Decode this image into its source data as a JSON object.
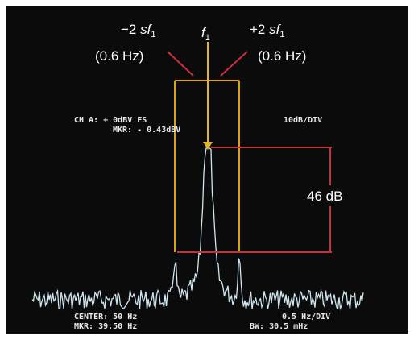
{
  "annotations": {
    "left": {
      "prefix": "−2 ",
      "variable": "sf",
      "subscript": "1",
      "note": "(0.6 Hz)"
    },
    "center": {
      "variable": "f",
      "subscript": "1"
    },
    "right": {
      "prefix": "+2 ",
      "variable": "sf",
      "subscript": "1",
      "note": "(0.6 Hz)"
    },
    "range": "46 dB"
  },
  "screen": {
    "channel": "CH A: + 0dBV  FS",
    "marker_level": "MKR: - 0.43dBV",
    "scale": "10dB/DIV",
    "center": "CENTER: 50 Hz",
    "marker_freq": "MKR: 39.50 Hz",
    "span": "0.5 Hz/DIV",
    "bandwidth": "BW: 30.5 mHz"
  }
}
